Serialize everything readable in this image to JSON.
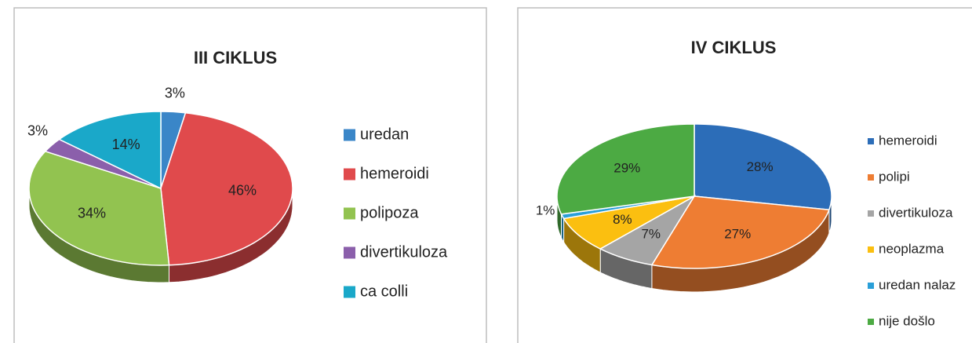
{
  "chart_data": [
    {
      "type": "pie",
      "title": "III CIKLUS",
      "categories": [
        "uredan",
        "hemeroidi",
        "polipoza",
        "divertikuloza",
        "ca  colli"
      ],
      "values": [
        3,
        46,
        34,
        3,
        14
      ],
      "value_labels": [
        "3%",
        "46%",
        "34%",
        "3%",
        "14%"
      ],
      "colors": [
        "#3a86c8",
        "#e04a4c",
        "#92c350",
        "#8b5fab",
        "#1aa8c9"
      ]
    },
    {
      "type": "pie",
      "title": "IV CIKLUS",
      "categories": [
        "hemeroidi",
        "polipi",
        "divertikuloza",
        "neoplazma",
        "uredan nalaz",
        "nije došlo"
      ],
      "values": [
        28,
        27,
        7,
        8,
        1,
        29
      ],
      "value_labels": [
        "28%",
        "27%",
        "7%",
        "8%",
        "1%",
        "29%"
      ],
      "colors": [
        "#2c6db8",
        "#ee7d33",
        "#a5a5a5",
        "#fbbf10",
        "#2a9fd8",
        "#4caa43"
      ]
    }
  ]
}
